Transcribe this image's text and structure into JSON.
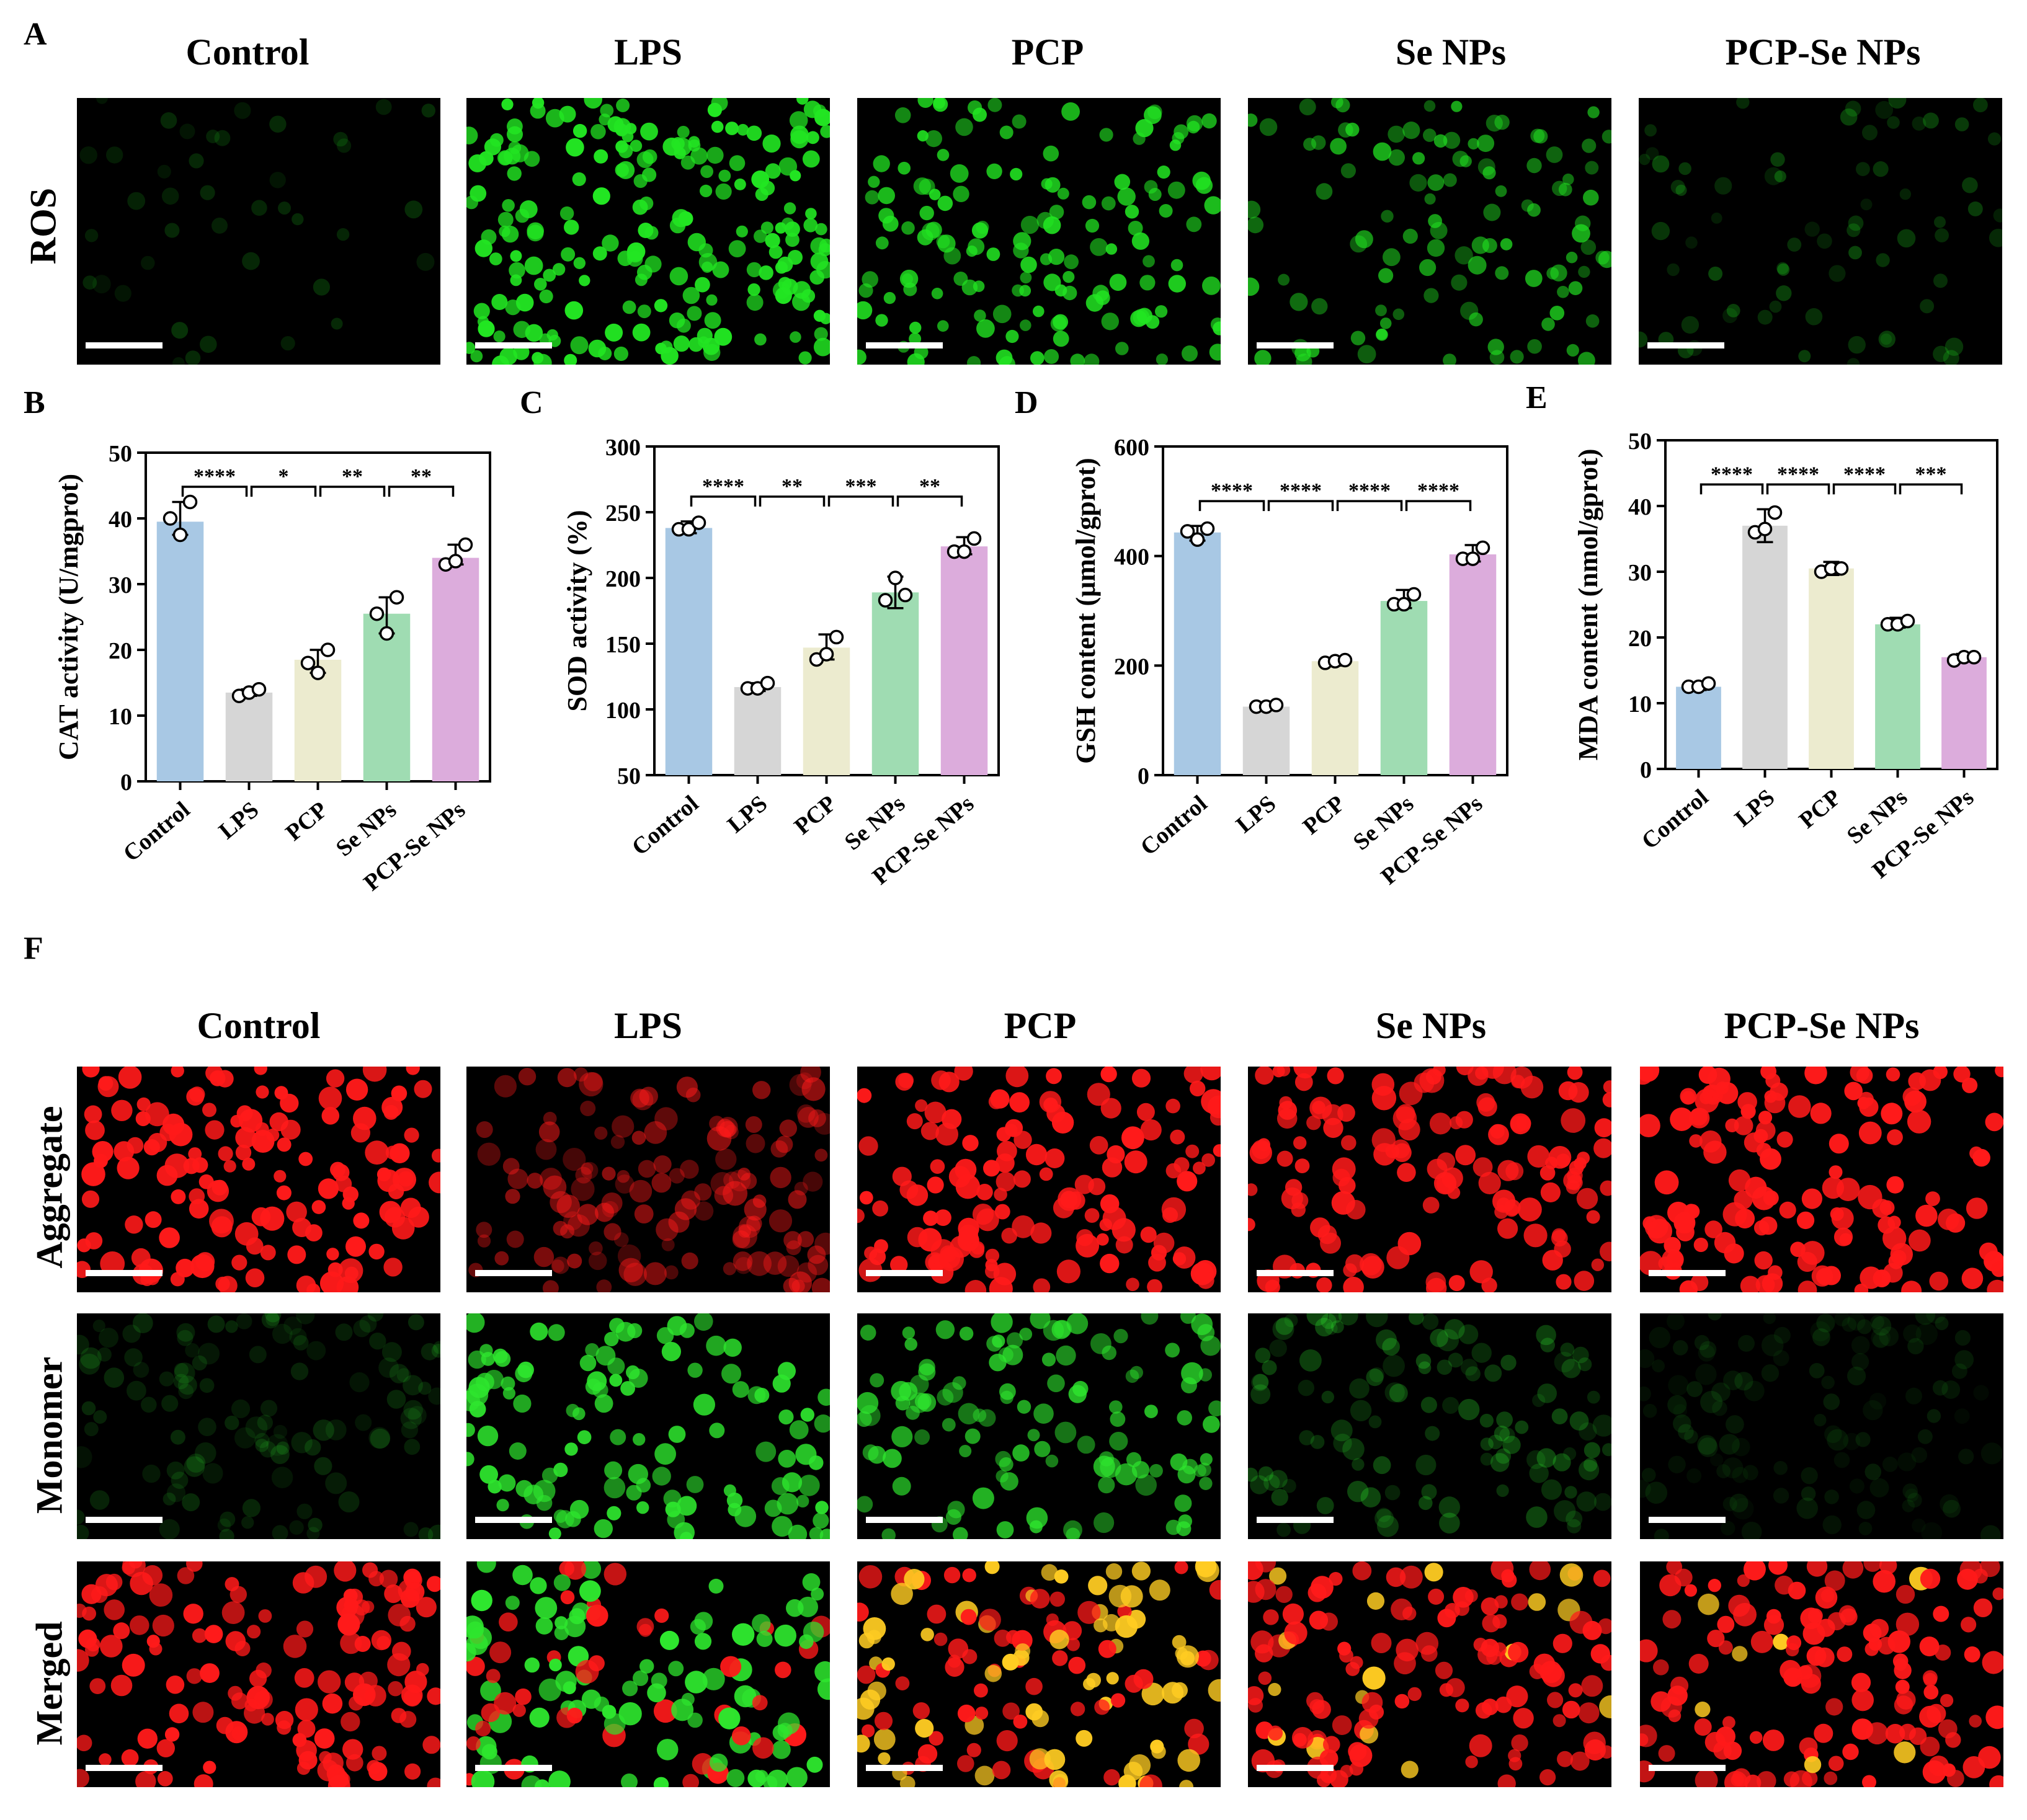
{
  "groups": [
    "Control",
    "LPS",
    "PCP",
    "Se NPs",
    "PCP-Se NPs"
  ],
  "panel_letters": {
    "a": "A",
    "b": "B",
    "c": "C",
    "d": "D",
    "e": "E",
    "f": "F"
  },
  "row_labels": {
    "ros": "ROS",
    "aggregate": "Aggregate",
    "monomer": "Monomer",
    "merged": "Merged"
  },
  "colors": {
    "control": "#a8c8e4",
    "lps": "#d6d6d6",
    "pcp": "#ecebcf",
    "senps": "#9fdcb2",
    "pcpsenps": "#dcacdc",
    "ros_green": "#22e622",
    "jc_red": "#ff1a1a",
    "jc_green": "#2ee62e",
    "merged_yellow": "#ffcc22"
  },
  "chart_data": [
    {
      "id": "B",
      "type": "bar",
      "categories": [
        "Control",
        "LPS",
        "PCP",
        "Se NPs",
        "PCP-Se NPs"
      ],
      "values": [
        39.5,
        13.5,
        18.5,
        25.5,
        34
      ],
      "points": [
        [
          40,
          37.5,
          42.5
        ],
        [
          13,
          13.5,
          14
        ],
        [
          18,
          16.5,
          20
        ],
        [
          25.5,
          22.5,
          28
        ],
        [
          33,
          33.5,
          36
        ]
      ],
      "errors": [
        [
          37.5,
          42.5
        ],
        [
          13,
          14
        ],
        [
          16.5,
          20
        ],
        [
          22.5,
          28
        ],
        [
          33,
          36
        ]
      ],
      "ylabel": "CAT activity (U/mgprot)",
      "ylim": [
        0,
        50
      ],
      "yticks": [
        0,
        10,
        20,
        30,
        40,
        50
      ],
      "significance": [
        "****",
        "*",
        "**",
        "**"
      ]
    },
    {
      "id": "C",
      "type": "bar",
      "categories": [
        "Control",
        "LPS",
        "PCP",
        "Se NPs",
        "PCP-Se NPs"
      ],
      "values": [
        238,
        117,
        147,
        189,
        224
      ],
      "points": [
        [
          237,
          237,
          242
        ],
        [
          116,
          116,
          120
        ],
        [
          138,
          142,
          155
        ],
        [
          183,
          200,
          187
        ],
        [
          220,
          220,
          230
        ]
      ],
      "errors": [
        [
          234,
          243
        ],
        [
          114,
          120
        ],
        [
          138,
          157
        ],
        [
          177,
          201
        ],
        [
          218,
          231
        ]
      ],
      "ylabel": "SOD activity (%)",
      "ylim": [
        50,
        300
      ],
      "yticks": [
        50,
        100,
        150,
        200,
        250,
        300
      ],
      "significance": [
        "****",
        "**",
        "***",
        "**"
      ]
    },
    {
      "id": "D",
      "type": "bar",
      "categories": [
        "Control",
        "LPS",
        "PCP",
        "Se NPs",
        "PCP-Se NPs"
      ],
      "values": [
        443,
        125,
        208,
        318,
        403
      ],
      "points": [
        [
          445,
          430,
          450
        ],
        [
          125,
          125,
          128
        ],
        [
          205,
          208,
          210
        ],
        [
          312,
          312,
          330
        ],
        [
          395,
          395,
          415
        ]
      ],
      "errors": [
        [
          428,
          455
        ],
        [
          122,
          128
        ],
        [
          200,
          213
        ],
        [
          305,
          338
        ],
        [
          390,
          420
        ]
      ],
      "ylabel": "GSH content (μmol/gprot)",
      "ylim": [
        0,
        600
      ],
      "yticks": [
        0,
        200,
        400,
        600
      ],
      "significance": [
        "****",
        "****",
        "****",
        "****"
      ]
    },
    {
      "id": "E",
      "type": "bar",
      "categories": [
        "Control",
        "LPS",
        "PCP",
        "Se NPs",
        "PCP-Se NPs"
      ],
      "values": [
        12.5,
        37,
        30.5,
        22,
        17
      ],
      "points": [
        [
          12.5,
          12.5,
          13
        ],
        [
          36,
          36.5,
          39
        ],
        [
          30,
          30.5,
          30.5
        ],
        [
          22,
          22,
          22.5
        ],
        [
          16.5,
          17,
          17
        ]
      ],
      "errors": [
        [
          12,
          13
        ],
        [
          34.5,
          39.5
        ],
        [
          29.5,
          31.5
        ],
        [
          21.5,
          23
        ],
        [
          16.5,
          17.5
        ]
      ],
      "ylabel": "MDA content (nmol/gprot)",
      "ylim": [
        0,
        50
      ],
      "yticks": [
        0,
        10,
        20,
        30,
        40,
        50
      ],
      "significance": [
        "****",
        "****",
        "****",
        "***"
      ]
    }
  ]
}
